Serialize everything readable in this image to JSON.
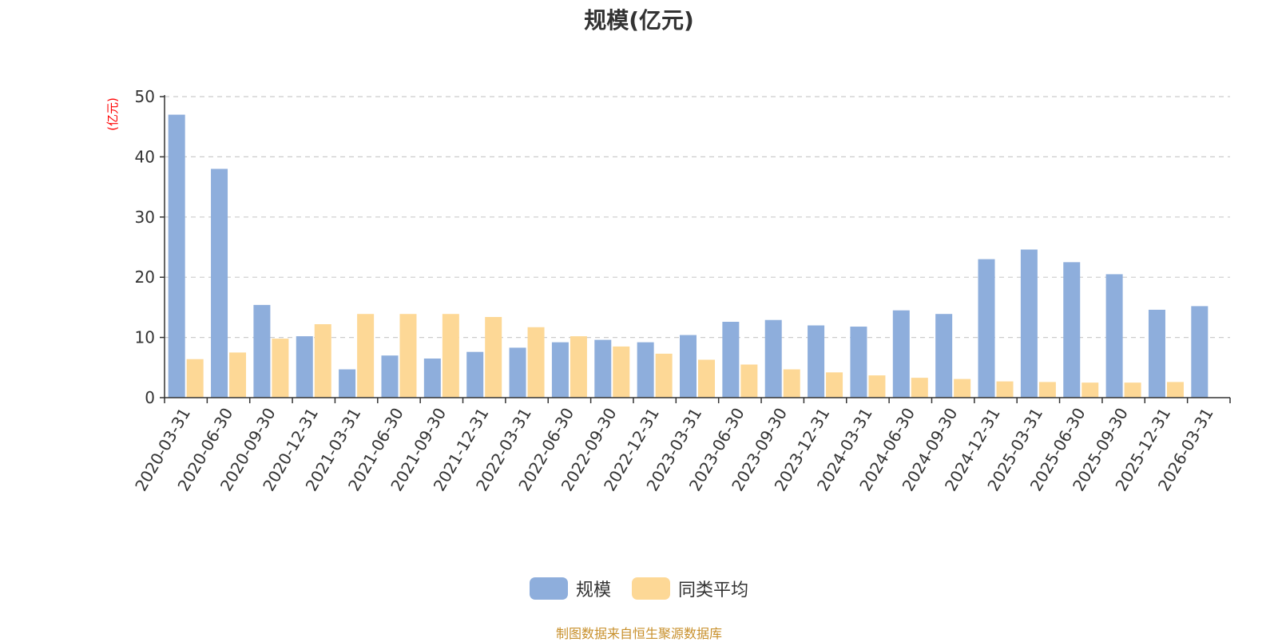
{
  "chart_data": {
    "type": "bar",
    "title": "规模(亿元)",
    "ylabel": "(亿元)",
    "xlabel": "",
    "ylim": [
      0,
      50
    ],
    "yticks": [
      0,
      10,
      20,
      30,
      40,
      50
    ],
    "grid": true,
    "legend_position": "bottom",
    "categories": [
      "2020-03-31",
      "2020-06-30",
      "2020-09-30",
      "2020-12-31",
      "2021-03-31",
      "2021-06-30",
      "2021-09-30",
      "2021-12-31",
      "2022-03-31",
      "2022-06-30",
      "2022-09-30",
      "2022-12-31",
      "2023-03-31",
      "2023-06-30",
      "2023-09-30",
      "2023-12-31",
      "2024-03-31",
      "2024-06-30",
      "2024-09-30",
      "2024-12-31",
      "2025-03-31",
      "2025-06-30",
      "2025-09-30",
      "2025-12-31",
      "2026-03-31"
    ],
    "series": [
      {
        "name": "规模",
        "color": "#8eaedc",
        "values": [
          47.0,
          38.0,
          15.4,
          10.2,
          4.7,
          7.0,
          6.5,
          7.6,
          8.3,
          9.2,
          9.6,
          9.2,
          10.4,
          12.6,
          12.9,
          12.0,
          11.8,
          14.5,
          13.9,
          23.0,
          24.6,
          22.5,
          20.5,
          14.6,
          15.2
        ]
      },
      {
        "name": "同类平均",
        "color": "#fdd896",
        "values": [
          6.4,
          7.5,
          9.8,
          12.2,
          13.9,
          13.9,
          13.9,
          13.4,
          11.7,
          10.2,
          8.5,
          7.3,
          6.3,
          5.5,
          4.7,
          4.2,
          3.7,
          3.3,
          3.1,
          2.7,
          2.6,
          2.5,
          2.5,
          2.6,
          null
        ]
      }
    ]
  },
  "source_text": "制图数据来自恒生聚源数据库"
}
